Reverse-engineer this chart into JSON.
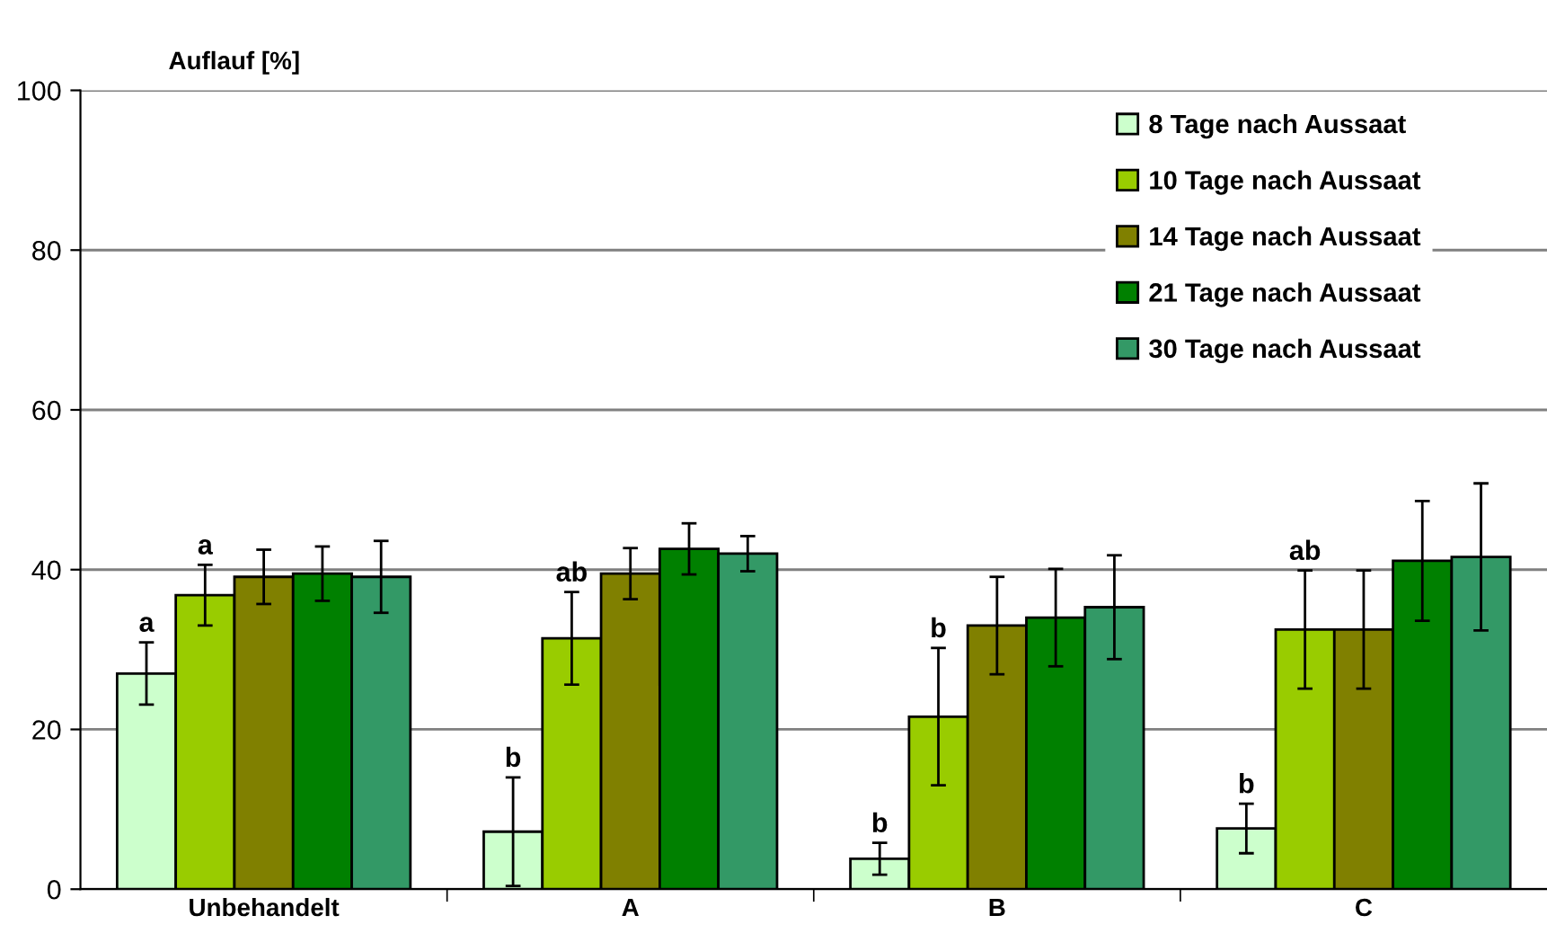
{
  "chart_data": {
    "type": "bar",
    "ylabel": "Auflauf [%]",
    "categories": [
      "Unbehandelt",
      "A",
      "B",
      "C"
    ],
    "series": [
      {
        "name": "8 Tage nach Aussaat",
        "color": "#ccffcc",
        "values": [
          27.0,
          7.2,
          3.8,
          7.6
        ],
        "errors": [
          3.9,
          6.8,
          2.0,
          3.1
        ],
        "value_labels": [
          "a",
          "b",
          "b",
          "b"
        ]
      },
      {
        "name": "10 Tage nach Aussaat",
        "color": "#99cc00",
        "values": [
          36.8,
          31.4,
          21.6,
          32.5
        ],
        "errors": [
          3.8,
          5.8,
          8.6,
          7.4
        ],
        "value_labels": [
          "a",
          "ab",
          "b",
          "ab"
        ]
      },
      {
        "name": "14 Tage nach Aussaat",
        "color": "#808000",
        "values": [
          39.1,
          39.5,
          33.0,
          32.5
        ],
        "errors": [
          3.4,
          3.2,
          6.1,
          7.4
        ]
      },
      {
        "name": "21 Tage nach Aussaat",
        "color": "#008000",
        "values": [
          39.5,
          42.6,
          34.0,
          41.1
        ],
        "errors": [
          3.4,
          3.2,
          6.1,
          7.5
        ]
      },
      {
        "name": "30 Tage nach Aussaat",
        "color": "#339966",
        "values": [
          39.1,
          42.0,
          35.3,
          41.6
        ],
        "errors": [
          4.5,
          2.2,
          6.5,
          9.2
        ]
      }
    ],
    "ylim": [
      0,
      100
    ],
    "yticks": [
      0,
      20,
      40,
      60,
      80,
      100
    ],
    "grid": "y",
    "legend": "top right"
  }
}
